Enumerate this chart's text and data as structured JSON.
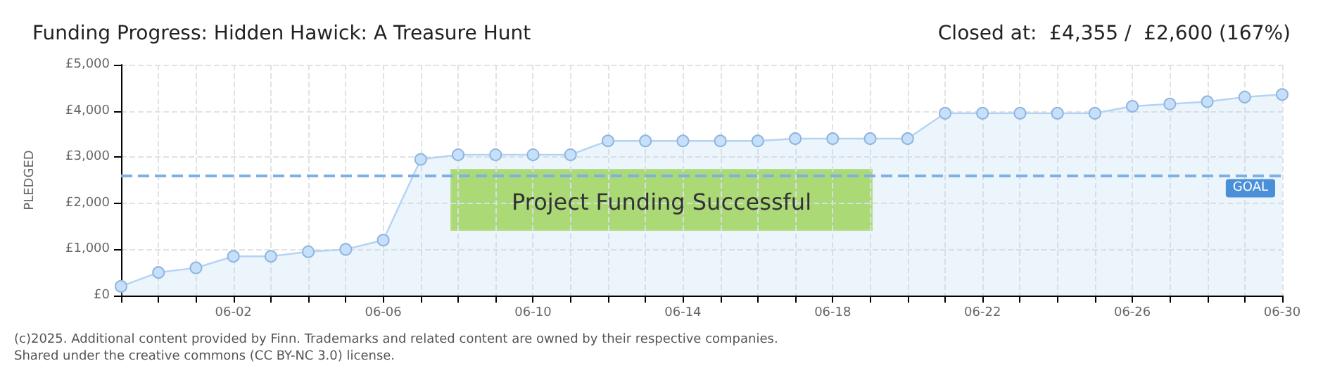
{
  "chart_data": {
    "type": "area",
    "title": "Funding Progress: Hidden Hawick: A Treasure Hunt",
    "subtitle": "Closed at:  £4,355 /  £2,600 (167%)",
    "ylabel": "PLEDGED",
    "categories": [
      null,
      null,
      null,
      "06-02",
      null,
      null,
      null,
      "06-06",
      null,
      null,
      null,
      "06-10",
      null,
      null,
      null,
      "06-14",
      null,
      null,
      null,
      "06-18",
      null,
      null,
      null,
      "06-22",
      null,
      null,
      null,
      "06-26",
      null,
      null,
      null,
      "06-30"
    ],
    "series": [
      {
        "color": "#b3d3f5",
        "values": [
          200,
          500,
          600,
          850,
          850,
          950,
          1000,
          1200,
          2950,
          3050,
          3050,
          3050,
          3050,
          3350,
          3350,
          3350,
          3350,
          3350,
          3400,
          3400,
          3400,
          3400,
          3950,
          3950,
          3950,
          3950,
          3950,
          4100,
          4150,
          4200,
          4300,
          4355
        ]
      }
    ],
    "ylim": [
      0,
      5000
    ],
    "yticks": [
      {
        "value": 0,
        "label": "£0"
      },
      {
        "value": 1000,
        "label": "£1,000"
      },
      {
        "value": 2000,
        "label": "£2,000"
      },
      {
        "value": 3000,
        "label": "£3,000"
      },
      {
        "value": 4000,
        "label": "£4,000"
      },
      {
        "value": 5000,
        "label": "£5,000"
      }
    ],
    "ref_lines": [
      {
        "axis": "y",
        "value": 2600,
        "label": "GOAL",
        "color": "#7fb0e3",
        "line_style": "dashed"
      }
    ],
    "annotations": [
      "Project Funding Successful",
      "(c)2025. Additional content provided by Finn. Trademarks and related content are owned by their respective companies.",
      "Shared under the creative commons (CC BY-NC 3.0) license."
    ],
    "grid": true,
    "marker": "circle",
    "legend": false
  }
}
